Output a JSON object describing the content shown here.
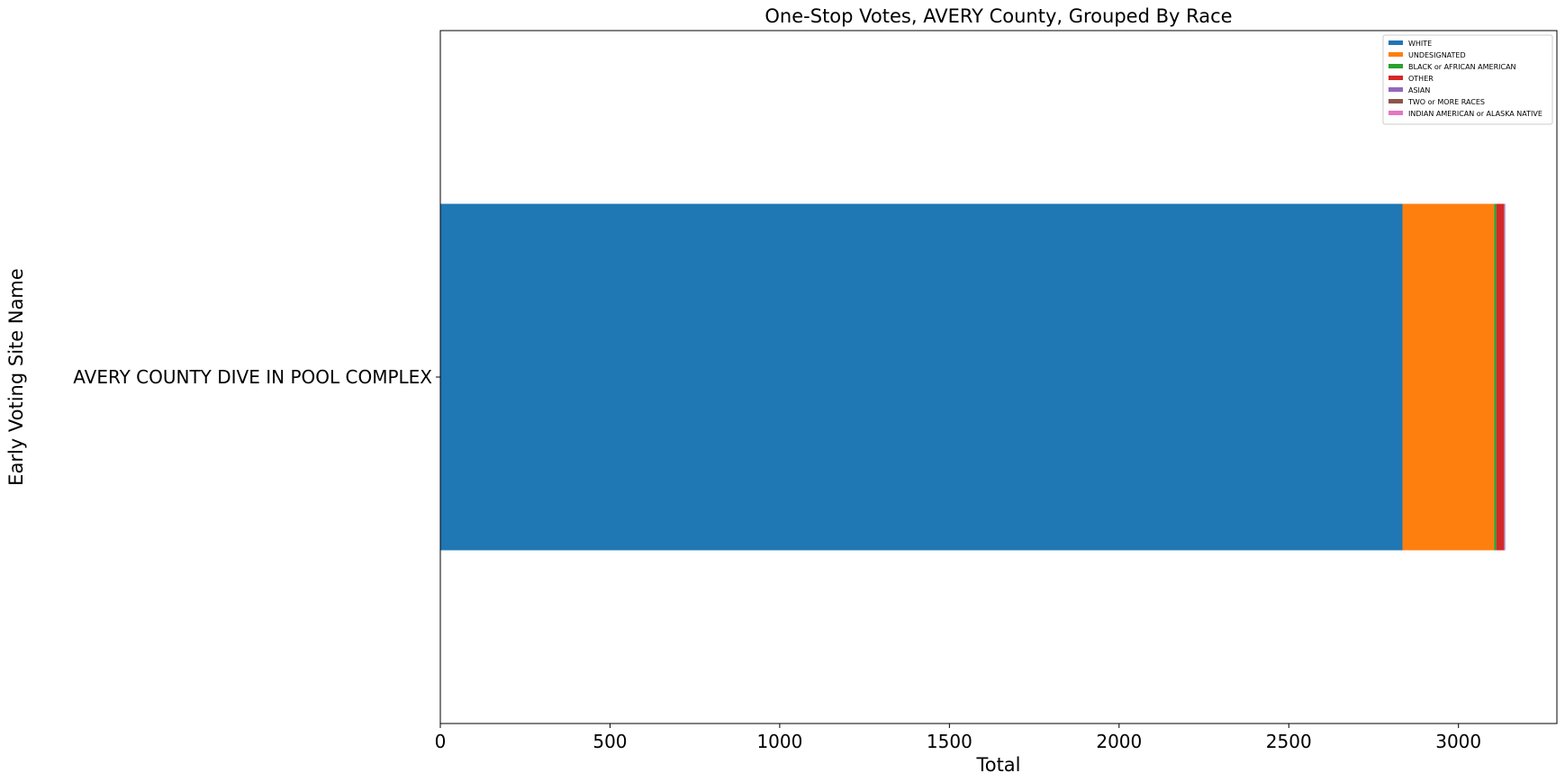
{
  "chart_data": {
    "type": "bar",
    "orientation": "horizontal",
    "stacked": true,
    "title": "One-Stop Votes, AVERY County, Grouped By Race",
    "xlabel": "Total",
    "ylabel": "Early Voting Site Name",
    "categories": [
      "AVERY COUNTY DIVE IN POOL COMPLEX"
    ],
    "xlim": [
      0,
      3290
    ],
    "xticks": [
      0,
      500,
      1000,
      1500,
      2000,
      2500,
      3000
    ],
    "grid": false,
    "legend_position": "top-right",
    "series": [
      {
        "name": "WHITE",
        "color": "#1f77b4",
        "values": [
          2835
        ]
      },
      {
        "name": "UNDESIGNATED",
        "color": "#ff7f0e",
        "values": [
          270
        ]
      },
      {
        "name": "BLACK or AFRICAN AMERICAN",
        "color": "#2ca02c",
        "values": [
          7
        ]
      },
      {
        "name": "OTHER",
        "color": "#d62728",
        "values": [
          22
        ]
      },
      {
        "name": "ASIAN",
        "color": "#9467bd",
        "values": [
          2
        ]
      },
      {
        "name": "TWO or MORE RACES",
        "color": "#8c564b",
        "values": [
          1
        ]
      },
      {
        "name": "INDIAN AMERICAN or ALASKA NATIVE",
        "color": "#e377c2",
        "values": [
          1
        ]
      }
    ]
  }
}
